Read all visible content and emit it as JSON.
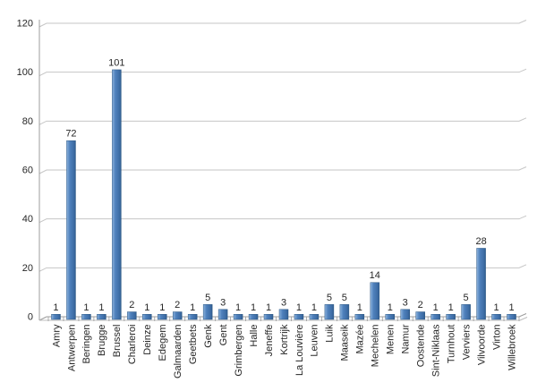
{
  "chart_data": {
    "type": "bar",
    "title": "",
    "xlabel": "",
    "ylabel": "",
    "categories": [
      "Amry",
      "Antwerpen",
      "Beringen",
      "Brugge",
      "Brussel",
      "Charleroi",
      "Deinze",
      "Edegem",
      "Galmaarden",
      "Geetbets",
      "Genk",
      "Gent",
      "Grimbergen",
      "Halle",
      "Jeneffe",
      "Kortrijk",
      "La Louvière",
      "Leuven",
      "Luik",
      "Maaseik",
      "Mazée",
      "Mechelen",
      "Menen",
      "Namur",
      "Oostende",
      "Sint-Niklaas",
      "Turnhout",
      "Verviers",
      "Vilvoorde",
      "Virton",
      "Willebroek"
    ],
    "values": [
      1,
      72,
      1,
      1,
      101,
      2,
      1,
      1,
      2,
      1,
      5,
      3,
      1,
      1,
      1,
      3,
      1,
      1,
      5,
      5,
      1,
      14,
      1,
      3,
      2,
      1,
      1,
      5,
      28,
      1,
      1
    ],
    "ylim": [
      0,
      120
    ],
    "ytick_step": 20,
    "yticks": [
      0,
      20,
      40,
      60,
      80,
      100,
      120
    ],
    "grid": true,
    "legend": "none",
    "style": "excel-3d-bevel",
    "colors": {
      "bar": "#4f81bd",
      "bar_highlight": "#8db3dd",
      "bar_edge_dark": "#3e6da5",
      "bar_shadow": "#2f5c8f",
      "bar_border": "#2e5984",
      "gridline": "#c6c6c6",
      "axis": "#9c9c9c",
      "floor_front": "#bdbdbd",
      "text": "#262626"
    }
  }
}
